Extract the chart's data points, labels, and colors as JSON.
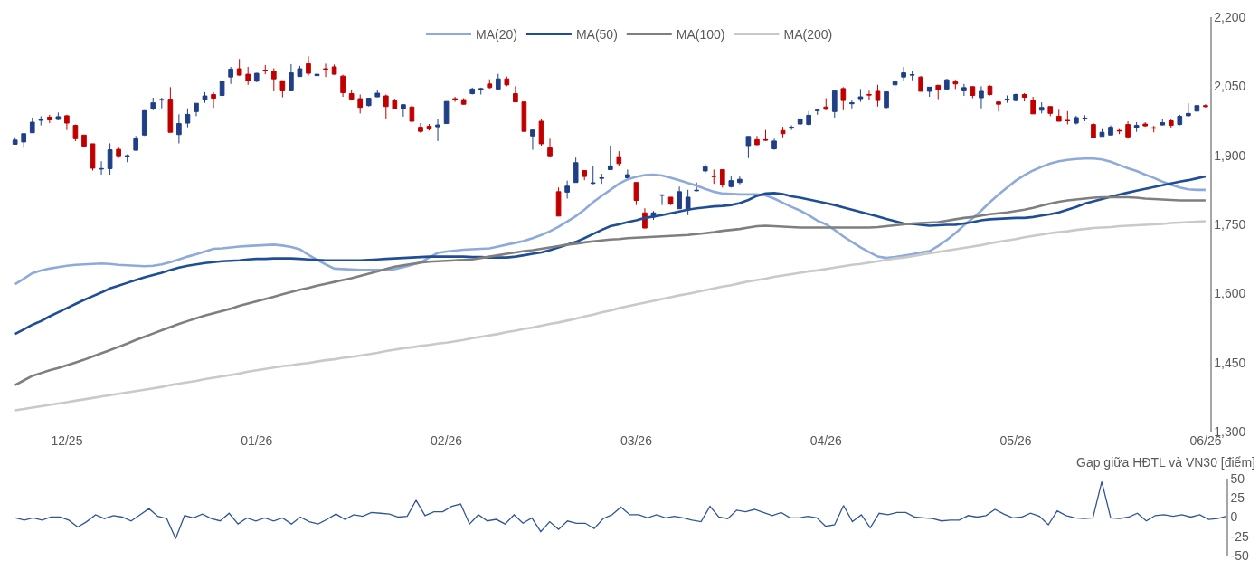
{
  "chart_data": [
    {
      "type": "candlestick",
      "categories": [
        null,
        null,
        null,
        null,
        null,
        null,
        "12/25",
        null,
        null,
        null,
        null,
        null,
        null,
        null,
        null,
        null,
        null,
        null,
        null,
        null,
        null,
        null,
        null,
        null,
        null,
        null,
        null,
        null,
        "01/26",
        null,
        null,
        null,
        null,
        null,
        null,
        null,
        null,
        null,
        null,
        null,
        null,
        null,
        null,
        null,
        null,
        null,
        null,
        null,
        null,
        null,
        "02/26",
        null,
        null,
        null,
        null,
        null,
        null,
        null,
        null,
        null,
        null,
        null,
        null,
        null,
        null,
        null,
        null,
        null,
        null,
        null,
        null,
        null,
        "03/26",
        null,
        null,
        null,
        null,
        null,
        null,
        null,
        null,
        null,
        null,
        null,
        null,
        null,
        null,
        null,
        null,
        null,
        null,
        null,
        null,
        null,
        "04/26",
        null,
        null,
        null,
        null,
        null,
        null,
        null,
        null,
        null,
        null,
        null,
        null,
        null,
        null,
        null,
        null,
        null,
        null,
        null,
        null,
        null,
        "05/26",
        null,
        null,
        null,
        null,
        null,
        null,
        null,
        null,
        null,
        null,
        null,
        null,
        null,
        null,
        null,
        null,
        null,
        null,
        null,
        null,
        null,
        "06/26"
      ],
      "ohlc": [
        [
          1924,
          1939,
          1923,
          1933
        ],
        [
          1929,
          1947,
          1916,
          1947
        ],
        [
          1949,
          1982,
          1949,
          1972
        ],
        [
          1976,
          1985,
          1965,
          1977
        ],
        [
          1983,
          1988,
          1970,
          1977
        ],
        [
          1978,
          1993,
          1976,
          1984
        ],
        [
          1986,
          1988,
          1955,
          1970
        ],
        [
          1965,
          1967,
          1931,
          1936
        ],
        [
          1944,
          1944,
          1918,
          1920
        ],
        [
          1925,
          1925,
          1867,
          1872
        ],
        [
          1870,
          1887,
          1858,
          1871
        ],
        [
          1871,
          1926,
          1858,
          1912
        ],
        [
          1913,
          1918,
          1894,
          1899
        ],
        [
          1898,
          1902,
          1885,
          1899
        ],
        [
          1911,
          1942,
          1910,
          1936
        ],
        [
          1944,
          1998,
          1942,
          1997
        ],
        [
          2001,
          2025,
          1998,
          2014
        ],
        [
          2020,
          2025,
          2002,
          2021
        ],
        [
          2022,
          2048,
          1950,
          1950
        ],
        [
          1945,
          1989,
          1926,
          1969
        ],
        [
          1970,
          2002,
          1961,
          1989
        ],
        [
          1995,
          2013,
          1985,
          2013
        ],
        [
          2021,
          2037,
          2014,
          2029
        ],
        [
          2032,
          2037,
          2003,
          2024
        ],
        [
          2030,
          2061,
          2024,
          2061
        ],
        [
          2070,
          2092,
          2055,
          2087
        ],
        [
          2088,
          2109,
          2073,
          2074
        ],
        [
          2076,
          2092,
          2053,
          2062
        ],
        [
          2061,
          2079,
          2059,
          2078
        ],
        [
          2085,
          2096,
          2076,
          2084
        ],
        [
          2083,
          2089,
          2039,
          2066
        ],
        [
          2062,
          2062,
          2026,
          2040
        ],
        [
          2040,
          2098,
          2040,
          2079
        ],
        [
          2071,
          2094,
          2071,
          2088
        ],
        [
          2099,
          2115,
          2073,
          2078
        ],
        [
          2073,
          2083,
          2055,
          2076
        ],
        [
          2088,
          2099,
          2070,
          2087
        ],
        [
          2092,
          2097,
          2075,
          2076
        ],
        [
          2072,
          2075,
          2027,
          2036
        ],
        [
          2034,
          2042,
          2019,
          2022
        ],
        [
          2023,
          2032,
          1991,
          2004
        ],
        [
          2008,
          2024,
          2006,
          2024
        ],
        [
          2027,
          2042,
          2026,
          2035
        ],
        [
          2029,
          2032,
          1980,
          2006
        ],
        [
          2019,
          2023,
          2000,
          2001
        ],
        [
          2001,
          2011,
          1984,
          2010
        ],
        [
          2005,
          2009,
          1972,
          1974
        ],
        [
          1961,
          1970,
          1949,
          1952
        ],
        [
          1963,
          1968,
          1954,
          1957
        ],
        [
          1962,
          1980,
          1931,
          1966
        ],
        [
          1969,
          2017,
          1969,
          2017
        ],
        [
          2023,
          2027,
          2016,
          2021
        ],
        [
          2021,
          2024,
          2010,
          2011
        ],
        [
          2034,
          2047,
          2032,
          2044
        ],
        [
          2042,
          2047,
          2032,
          2045
        ],
        [
          2055,
          2065,
          2045,
          2047
        ],
        [
          2044,
          2077,
          2043,
          2066
        ],
        [
          2066,
          2071,
          2050,
          2053
        ],
        [
          2034,
          2050,
          2016,
          2016
        ],
        [
          2016,
          2017,
          1952,
          1952
        ],
        [
          1942,
          1955,
          1912,
          1955
        ],
        [
          1974,
          1978,
          1921,
          1925
        ],
        [
          1916,
          1936,
          1896,
          1899
        ],
        [
          1821,
          1830,
          1768,
          1768
        ],
        [
          1820,
          1845,
          1806,
          1833
        ],
        [
          1841,
          1895,
          1841,
          1884
        ],
        [
          1867,
          1867,
          1846,
          1854
        ],
        [
          1839,
          1877,
          1837,
          1840
        ],
        [
          1850,
          1860,
          1838,
          1851
        ],
        [
          1869,
          1921,
          1869,
          1877
        ],
        [
          1897,
          1909,
          1877,
          1882
        ],
        [
          1851,
          1869,
          1846,
          1858
        ],
        [
          1841,
          1841,
          1792,
          1802
        ],
        [
          1775,
          1785,
          1742,
          1742
        ],
        [
          1766,
          1779,
          1760,
          1775
        ],
        [
          1813,
          1815,
          1792,
          1814
        ],
        [
          1809,
          1809,
          1792,
          1794
        ],
        [
          1784,
          1832,
          1784,
          1821
        ],
        [
          1781,
          1825,
          1770,
          1809
        ],
        [
          1823,
          1841,
          1822,
          1824
        ],
        [
          1866,
          1882,
          1861,
          1875
        ],
        [
          1855,
          1869,
          1838,
          1854
        ],
        [
          1869,
          1869,
          1830,
          1836
        ],
        [
          1832,
          1856,
          1830,
          1845
        ],
        [
          1841,
          1854,
          1837,
          1848
        ],
        [
          1921,
          1941,
          1894,
          1941
        ],
        [
          1934,
          1942,
          1922,
          1923
        ],
        [
          1934,
          1955,
          1931,
          1933
        ],
        [
          1914,
          1936,
          1912,
          1931
        ],
        [
          1954,
          1962,
          1939,
          1947
        ],
        [
          1959,
          1965,
          1955,
          1961
        ],
        [
          1968,
          1981,
          1967,
          1979
        ],
        [
          1967,
          1996,
          1965,
          1987
        ],
        [
          1997,
          2001,
          1988,
          1998
        ],
        [
          2005,
          2024,
          1998,
          2000
        ],
        [
          1995,
          2040,
          1982,
          2040
        ],
        [
          2045,
          2048,
          1998,
          2019
        ],
        [
          2012,
          2019,
          2002,
          2014
        ],
        [
          2023,
          2044,
          2016,
          2027
        ],
        [
          2032,
          2040,
          2021,
          2031
        ],
        [
          2039,
          2053,
          2006,
          2019
        ],
        [
          2004,
          2038,
          2002,
          2038
        ],
        [
          2053,
          2066,
          2036,
          2060
        ],
        [
          2070,
          2092,
          2061,
          2079
        ],
        [
          2074,
          2083,
          2063,
          2075
        ],
        [
          2070,
          2072,
          2039,
          2039
        ],
        [
          2039,
          2048,
          2027,
          2048
        ],
        [
          2052,
          2053,
          2022,
          2042
        ],
        [
          2044,
          2066,
          2042,
          2064
        ],
        [
          2060,
          2064,
          2044,
          2055
        ],
        [
          2040,
          2055,
          2029,
          2047
        ],
        [
          2049,
          2050,
          2024,
          2030
        ],
        [
          2025,
          2050,
          2002,
          2039
        ],
        [
          2050,
          2052,
          2030,
          2032
        ],
        [
          2016,
          2017,
          1995,
          2011
        ],
        [
          2021,
          2030,
          2014,
          2022
        ],
        [
          2019,
          2034,
          2017,
          2032
        ],
        [
          2032,
          2035,
          2017,
          2026
        ],
        [
          2019,
          2027,
          1990,
          1990
        ],
        [
          1998,
          2015,
          1991,
          2004
        ],
        [
          2006,
          2006,
          1985,
          1991
        ],
        [
          1985,
          1999,
          1974,
          1974
        ],
        [
          1976,
          1996,
          1967,
          1975
        ],
        [
          1970,
          1986,
          1967,
          1982
        ],
        [
          1980,
          1987,
          1974,
          1981
        ],
        [
          1967,
          1970,
          1938,
          1938
        ],
        [
          1941,
          1957,
          1941,
          1950
        ],
        [
          1944,
          1965,
          1944,
          1961
        ],
        [
          1954,
          1957,
          1946,
          1953
        ],
        [
          1967,
          1974,
          1936,
          1940
        ],
        [
          1960,
          1972,
          1951,
          1965
        ],
        [
          1968,
          1972,
          1962,
          1964
        ],
        [
          1960,
          1964,
          1950,
          1959
        ],
        [
          1966,
          1978,
          1965,
          1971
        ],
        [
          1975,
          1978,
          1959,
          1965
        ],
        [
          1967,
          1988,
          1965,
          1985
        ],
        [
          1986,
          2013,
          1984,
          1991
        ],
        [
          1996,
          2010,
          1995,
          2008
        ],
        [
          2008,
          2011,
          2004,
          2006
        ]
      ],
      "series": [
        {
          "name": "MA(20)",
          "type": "line",
          "color": "#8eaadb",
          "values": [
            1620,
            1632,
            1644,
            1650,
            1654,
            1657,
            1660,
            1662,
            1663,
            1664,
            1665,
            1664,
            1662,
            1661,
            1660,
            1659,
            1660,
            1663,
            1668,
            1674,
            1680,
            1685,
            1691,
            1697,
            1698,
            1700,
            1702,
            1703,
            1704,
            1705,
            1706,
            1704,
            1701,
            1696,
            1684,
            1673,
            1663,
            1654,
            1653,
            1652,
            1651,
            1651,
            1651,
            1651,
            1653,
            1657,
            1662,
            1667,
            1678,
            1688,
            1691,
            1693,
            1695,
            1696,
            1697,
            1698,
            1702,
            1706,
            1710,
            1714,
            1720,
            1727,
            1735,
            1745,
            1756,
            1768,
            1782,
            1798,
            1812,
            1825,
            1838,
            1848,
            1853,
            1857,
            1858,
            1856,
            1851,
            1846,
            1840,
            1834,
            1827,
            1821,
            1817,
            1816,
            1815,
            1815,
            1815,
            1813,
            1806,
            1797,
            1788,
            1780,
            1770,
            1758,
            1750,
            1738,
            1724,
            1712,
            1700,
            1690,
            1680,
            1677,
            1679,
            1682,
            1685,
            1689,
            1692,
            1703,
            1716,
            1731,
            1748,
            1763,
            1780,
            1798,
            1815,
            1830,
            1845,
            1857,
            1867,
            1875,
            1882,
            1887,
            1890,
            1892,
            1893,
            1893,
            1891,
            1886,
            1879,
            1872,
            1866,
            1858,
            1851,
            1843,
            1836,
            1830,
            1826,
            1825,
            1825
          ]
        },
        {
          "name": "MA(50)",
          "type": "line",
          "color": "#1f4e96",
          "values": [
            1512,
            1522,
            1532,
            1540,
            1550,
            1559,
            1568,
            1577,
            1586,
            1594,
            1602,
            1611,
            1617,
            1623,
            1629,
            1635,
            1640,
            1645,
            1651,
            1656,
            1660,
            1663,
            1666,
            1668,
            1670,
            1671,
            1672,
            1674,
            1675,
            1675,
            1676,
            1676,
            1676,
            1675,
            1674,
            1673,
            1672,
            1672,
            1672,
            1672,
            1672,
            1673,
            1674,
            1675,
            1676,
            1677,
            1678,
            1679,
            1680,
            1680,
            1680,
            1680,
            1680,
            1679,
            1679,
            1678,
            1678,
            1678,
            1680,
            1683,
            1686,
            1689,
            1694,
            1700,
            1706,
            1712,
            1720,
            1729,
            1738,
            1746,
            1750,
            1755,
            1759,
            1764,
            1767,
            1770,
            1774,
            1778,
            1782,
            1785,
            1787,
            1789,
            1790,
            1792,
            1796,
            1803,
            1812,
            1817,
            1818,
            1816,
            1811,
            1808,
            1804,
            1800,
            1796,
            1792,
            1787,
            1782,
            1777,
            1772,
            1767,
            1762,
            1757,
            1752,
            1751,
            1749,
            1747,
            1748,
            1749,
            1749,
            1752,
            1755,
            1759,
            1761,
            1762,
            1763,
            1764,
            1764,
            1766,
            1769,
            1772,
            1776,
            1782,
            1788,
            1795,
            1800,
            1805,
            1810,
            1815,
            1819,
            1823,
            1827,
            1831,
            1835,
            1839,
            1843,
            1846,
            1850,
            1854
          ]
        },
        {
          "name": "MA(100)",
          "type": "line",
          "color": "#7f7f7f",
          "values": [
            1401,
            1411,
            1421,
            1427,
            1433,
            1438,
            1444,
            1450,
            1456,
            1463,
            1470,
            1477,
            1484,
            1491,
            1499,
            1506,
            1513,
            1520,
            1527,
            1534,
            1540,
            1546,
            1552,
            1557,
            1562,
            1567,
            1573,
            1578,
            1583,
            1588,
            1593,
            1598,
            1603,
            1608,
            1612,
            1617,
            1621,
            1625,
            1629,
            1633,
            1638,
            1643,
            1648,
            1653,
            1658,
            1661,
            1664,
            1667,
            1669,
            1670,
            1671,
            1672,
            1673,
            1674,
            1677,
            1680,
            1683,
            1686,
            1689,
            1692,
            1694,
            1697,
            1700,
            1703,
            1706,
            1708,
            1711,
            1713,
            1715,
            1717,
            1718,
            1720,
            1721,
            1722,
            1723,
            1724,
            1725,
            1726,
            1727,
            1729,
            1731,
            1733,
            1736,
            1738,
            1740,
            1743,
            1746,
            1747,
            1746,
            1745,
            1744,
            1743,
            1743,
            1743,
            1743,
            1743,
            1743,
            1743,
            1743,
            1743,
            1744,
            1746,
            1748,
            1750,
            1752,
            1753,
            1754,
            1755,
            1758,
            1761,
            1764,
            1766,
            1769,
            1772,
            1774,
            1776,
            1779,
            1782,
            1786,
            1791,
            1795,
            1799,
            1802,
            1804,
            1806,
            1808,
            1809,
            1809,
            1809,
            1809,
            1808,
            1806,
            1805,
            1804,
            1803,
            1802,
            1802,
            1802,
            1802
          ]
        },
        {
          "name": "MA(200)",
          "type": "line",
          "color": "#c9c9c9",
          "values": [
            1346,
            1349,
            1352,
            1355,
            1358,
            1361,
            1364,
            1367,
            1370,
            1373,
            1376,
            1379,
            1382,
            1385,
            1388,
            1391,
            1394,
            1397,
            1401,
            1404,
            1407,
            1410,
            1414,
            1417,
            1420,
            1423,
            1426,
            1430,
            1433,
            1436,
            1439,
            1442,
            1444,
            1447,
            1449,
            1452,
            1455,
            1457,
            1460,
            1462,
            1465,
            1468,
            1471,
            1475,
            1478,
            1481,
            1483,
            1486,
            1488,
            1491,
            1493,
            1496,
            1499,
            1503,
            1506,
            1509,
            1512,
            1516,
            1519,
            1523,
            1526,
            1530,
            1534,
            1537,
            1541,
            1545,
            1550,
            1554,
            1559,
            1563,
            1568,
            1572,
            1576,
            1580,
            1584,
            1588,
            1592,
            1596,
            1599,
            1603,
            1607,
            1611,
            1615,
            1618,
            1622,
            1626,
            1629,
            1632,
            1636,
            1639,
            1642,
            1645,
            1648,
            1650,
            1653,
            1656,
            1659,
            1662,
            1664,
            1667,
            1670,
            1673,
            1676,
            1678,
            1681,
            1684,
            1687,
            1690,
            1693,
            1696,
            1699,
            1702,
            1705,
            1709,
            1712,
            1715,
            1718,
            1722,
            1725,
            1728,
            1731,
            1733,
            1735,
            1738,
            1740,
            1742,
            1743,
            1744,
            1746,
            1747,
            1748,
            1749,
            1750,
            1751,
            1753,
            1754,
            1755,
            1756,
            1757
          ]
        }
      ],
      "ylim": [
        1300,
        2200
      ],
      "yticks": [
        {
          "value": 1300,
          "label": "1,300"
        },
        {
          "value": 1450,
          "label": "1,450"
        },
        {
          "value": 1600,
          "label": "1,600"
        },
        {
          "value": 1750,
          "label": "1,750"
        },
        {
          "value": 1900,
          "label": "1,900"
        },
        {
          "value": 2050,
          "label": "2,050"
        },
        {
          "value": 2200,
          "label": "2,200"
        }
      ],
      "legend": "top"
    },
    {
      "type": "line",
      "ylabel": "Gap giữa HĐTL và VN30 [điểm]",
      "categories": [
        null,
        null,
        null,
        null,
        null,
        null,
        null,
        null,
        null,
        null,
        null,
        null,
        null,
        null,
        null,
        null,
        null,
        null,
        null,
        null,
        null,
        null,
        null,
        null,
        null,
        null,
        null,
        null,
        null,
        null,
        null,
        null,
        null,
        null,
        null,
        null,
        null,
        null,
        null,
        null,
        null,
        null,
        null,
        null,
        null,
        null,
        null,
        null,
        null,
        null,
        null,
        null,
        null,
        null,
        null,
        null,
        null,
        null,
        null,
        null,
        null,
        null,
        null,
        null,
        null,
        null,
        null,
        null,
        null,
        null,
        null,
        null,
        null,
        null,
        null,
        null,
        null,
        null,
        null,
        null,
        null,
        null,
        null,
        null,
        null,
        null,
        null,
        null,
        null,
        null,
        null,
        null,
        null,
        null,
        null,
        null,
        null,
        null,
        null,
        null,
        null,
        null,
        null,
        null,
        null,
        null,
        null,
        null,
        null,
        null,
        null,
        null,
        null,
        null,
        null,
        null,
        null,
        null,
        null,
        null,
        null,
        null,
        null,
        null,
        null,
        null,
        null,
        null,
        null,
        null,
        null,
        null,
        null,
        null,
        null,
        null,
        null
      ],
      "values": [
        -1,
        -4,
        -1,
        -4,
        0,
        0,
        -4,
        -13,
        -6,
        3,
        -2,
        2,
        0,
        -5,
        3,
        11,
        1,
        -2,
        -28,
        2,
        -1,
        4,
        -2,
        -5,
        5,
        -9,
        -1,
        -5,
        -1,
        -5,
        -1,
        -9,
        0,
        -6,
        -9,
        -3,
        4,
        -3,
        3,
        1,
        6,
        5,
        4,
        0,
        1,
        22,
        2,
        7,
        7,
        14,
        17,
        -9,
        3,
        -5,
        -3,
        -9,
        3,
        -8,
        -1,
        -19,
        -6,
        -16,
        -5,
        -8,
        -8,
        -15,
        -2,
        3,
        13,
        3,
        3,
        -1,
        3,
        -1,
        1,
        -1,
        -4,
        -6,
        14,
        0,
        -2,
        9,
        7,
        10,
        6,
        2,
        6,
        -1,
        -1,
        1,
        -1,
        -12,
        -10,
        15,
        -6,
        3,
        -14,
        5,
        3,
        6,
        6,
        0,
        -1,
        -2,
        -5,
        -4,
        -4,
        2,
        0,
        2,
        10,
        4,
        -1,
        0,
        5,
        1,
        -10,
        8,
        2,
        -1,
        -2,
        -1,
        46,
        -1,
        -2,
        0,
        5,
        -5,
        2,
        3,
        1,
        3,
        0,
        3,
        -3,
        -2,
        1
      ],
      "color": "#2f5597",
      "ylim": [
        -50,
        50
      ],
      "yticks": [
        -50,
        -25,
        0,
        25,
        50
      ],
      "tick_labels": "y"
    }
  ]
}
